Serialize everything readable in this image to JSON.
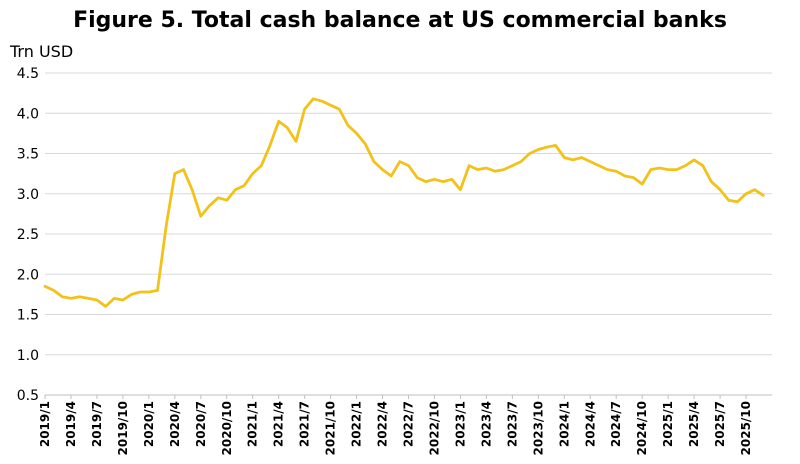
{
  "chart_data": {
    "type": "line",
    "title": "Figure 5. Total cash balance at US commercial banks",
    "ylabel": "Trn USD",
    "ylim": [
      0.5,
      4.5
    ],
    "yticks": [
      "0.5",
      "1.0",
      "1.5",
      "2.0",
      "2.5",
      "3.0",
      "3.5",
      "4.0",
      "4.5"
    ],
    "grid": true,
    "line_color": "#F2C21B",
    "xtick_labels": [
      "2019/1",
      "2019/4",
      "2019/7",
      "2019/10",
      "2020/1",
      "2020/4",
      "2020/7",
      "2020/10",
      "2021/1",
      "2021/4",
      "2021/7",
      "2021/10",
      "2022/1",
      "2022/4",
      "2022/7",
      "2022/10",
      "2023/1",
      "2023/4",
      "2023/7",
      "2023/10",
      "2024/1",
      "2024/4",
      "2024/7",
      "2024/10",
      "2025/1",
      "2025/4",
      "2025/7",
      "2025/10"
    ],
    "series": [
      {
        "x": [
          "2019-01",
          "2019-02",
          "2019-03",
          "2019-04",
          "2019-05",
          "2019-06",
          "2019-07",
          "2019-08",
          "2019-09",
          "2019-10",
          "2019-11",
          "2019-12",
          "2020-01",
          "2020-02",
          "2020-03",
          "2020-04",
          "2020-05",
          "2020-06",
          "2020-07",
          "2020-08",
          "2020-09",
          "2020-10",
          "2020-11",
          "2020-12",
          "2021-01",
          "2021-02",
          "2021-03",
          "2021-04",
          "2021-05",
          "2021-06",
          "2021-07",
          "2021-08",
          "2021-09",
          "2021-10",
          "2021-11",
          "2021-12",
          "2022-01",
          "2022-02",
          "2022-03",
          "2022-04",
          "2022-05",
          "2022-06",
          "2022-07",
          "2022-08",
          "2022-09",
          "2022-10",
          "2022-11",
          "2022-12",
          "2023-01",
          "2023-02",
          "2023-03",
          "2023-04",
          "2023-05",
          "2023-06",
          "2023-07",
          "2023-08",
          "2023-09",
          "2023-10",
          "2023-11",
          "2023-12",
          "2024-01",
          "2024-02",
          "2024-03",
          "2024-04",
          "2024-05",
          "2024-06",
          "2024-07",
          "2024-08",
          "2024-09",
          "2024-10",
          "2024-11",
          "2024-12",
          "2025-01",
          "2025-02",
          "2025-03",
          "2025-04",
          "2025-05",
          "2025-06",
          "2025-07",
          "2025-08",
          "2025-09",
          "2025-10",
          "2025-11",
          "2025-12"
        ],
        "values": [
          1.85,
          1.8,
          1.72,
          1.7,
          1.72,
          1.7,
          1.68,
          1.6,
          1.7,
          1.68,
          1.75,
          1.78,
          1.78,
          1.8,
          2.6,
          3.25,
          3.3,
          3.05,
          2.72,
          2.85,
          2.95,
          2.92,
          3.05,
          3.1,
          3.25,
          3.35,
          3.6,
          3.9,
          3.82,
          3.65,
          4.05,
          4.18,
          4.15,
          4.1,
          4.05,
          3.85,
          3.75,
          3.62,
          3.4,
          3.3,
          3.22,
          3.4,
          3.35,
          3.2,
          3.15,
          3.18,
          3.15,
          3.18,
          3.05,
          3.35,
          3.3,
          3.32,
          3.28,
          3.3,
          3.35,
          3.4,
          3.5,
          3.55,
          3.58,
          3.6,
          3.45,
          3.42,
          3.45,
          3.4,
          3.35,
          3.3,
          3.28,
          3.22,
          3.2,
          3.12,
          3.3,
          3.32,
          3.3,
          3.3,
          3.35,
          3.42,
          3.35,
          3.15,
          3.05,
          2.92,
          2.9,
          3.0,
          3.05,
          2.98
        ]
      }
    ]
  }
}
